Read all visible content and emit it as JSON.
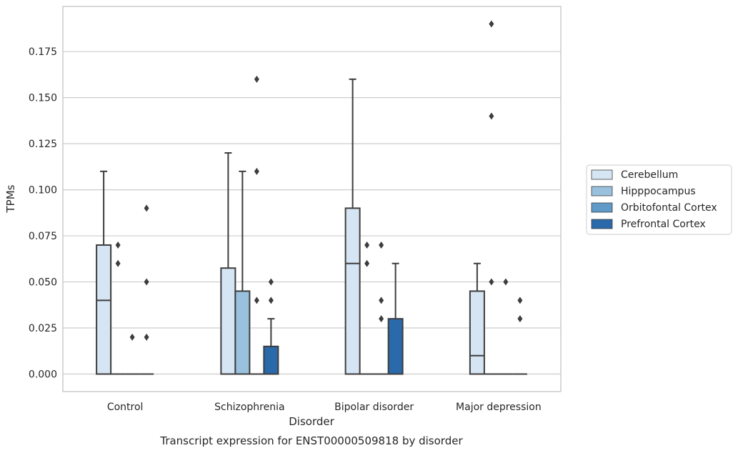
{
  "chart_data": {
    "type": "box",
    "caption": "Transcript expression for ENST00000509818 by disorder",
    "xlabel": "Disorder",
    "ylabel": "TPMs",
    "ylim": [
      -0.0095,
      0.1995
    ],
    "yticks": [
      0.0,
      0.025,
      0.05,
      0.075,
      0.1,
      0.125,
      0.15,
      0.175
    ],
    "ytick_labels": [
      "0.000",
      "0.025",
      "0.050",
      "0.075",
      "0.100",
      "0.125",
      "0.150",
      "0.175"
    ],
    "grid": true,
    "legend_position": "right",
    "categories": [
      "Control",
      "Schizophrenia",
      "Bipolar disorder",
      "Major depression"
    ],
    "series": [
      {
        "name": "Cerebellum",
        "color": "#d6e5f3",
        "boxes": [
          {
            "q1": 0.0,
            "median": 0.04,
            "q3": 0.07,
            "whisker_low": 0.0,
            "whisker_high": 0.11,
            "outliers": []
          },
          {
            "q1": 0.0,
            "median": 0.0,
            "q3": 0.0575,
            "whisker_low": 0.0,
            "whisker_high": 0.12,
            "outliers": []
          },
          {
            "q1": 0.0,
            "median": 0.06,
            "q3": 0.09,
            "whisker_low": 0.0,
            "whisker_high": 0.16,
            "outliers": []
          },
          {
            "q1": 0.0,
            "median": 0.01,
            "q3": 0.045,
            "whisker_low": 0.0,
            "whisker_high": 0.06,
            "outliers": []
          }
        ]
      },
      {
        "name": "Hipppocampus",
        "color": "#99c1de",
        "boxes": [
          {
            "q1": 0.0,
            "median": 0.0,
            "q3": 0.0,
            "whisker_low": 0.0,
            "whisker_high": 0.0,
            "outliers": [
              0.06,
              0.07
            ]
          },
          {
            "q1": 0.0,
            "median": 0.0,
            "q3": 0.045,
            "whisker_low": 0.0,
            "whisker_high": 0.11,
            "outliers": []
          },
          {
            "q1": 0.0,
            "median": 0.0,
            "q3": 0.0,
            "whisker_low": 0.0,
            "whisker_high": 0.0,
            "outliers": [
              0.06,
              0.07
            ]
          },
          {
            "q1": 0.0,
            "median": 0.0,
            "q3": 0.0,
            "whisker_low": 0.0,
            "whisker_high": 0.0,
            "outliers": [
              0.14,
              0.19,
              0.05
            ]
          }
        ]
      },
      {
        "name": "Orbitofontal Cortex",
        "color": "#5f9ac8",
        "boxes": [
          {
            "q1": 0.0,
            "median": 0.0,
            "q3": 0.0,
            "whisker_low": 0.0,
            "whisker_high": 0.0,
            "outliers": [
              0.02
            ]
          },
          {
            "q1": 0.0,
            "median": 0.0,
            "q3": 0.0,
            "whisker_low": 0.0,
            "whisker_high": 0.0,
            "outliers": [
              0.04,
              0.11,
              0.16
            ]
          },
          {
            "q1": 0.0,
            "median": 0.0,
            "q3": 0.0,
            "whisker_low": 0.0,
            "whisker_high": 0.0,
            "outliers": [
              0.03,
              0.04,
              0.07
            ]
          },
          {
            "q1": 0.0,
            "median": 0.0,
            "q3": 0.0,
            "whisker_low": 0.0,
            "whisker_high": 0.0,
            "outliers": [
              0.05
            ]
          }
        ]
      },
      {
        "name": "Prefrontal Cortex",
        "color": "#2a69aa",
        "boxes": [
          {
            "q1": 0.0,
            "median": 0.0,
            "q3": 0.0,
            "whisker_low": 0.0,
            "whisker_high": 0.0,
            "outliers": [
              0.02,
              0.05,
              0.09
            ]
          },
          {
            "q1": 0.0,
            "median": 0.0,
            "q3": 0.015,
            "whisker_low": 0.0,
            "whisker_high": 0.03,
            "outliers": [
              0.04,
              0.05
            ]
          },
          {
            "q1": 0.0,
            "median": 0.0,
            "q3": 0.03,
            "whisker_low": 0.0,
            "whisker_high": 0.06,
            "outliers": []
          },
          {
            "q1": 0.0,
            "median": 0.0,
            "q3": 0.0,
            "whisker_low": 0.0,
            "whisker_high": 0.0,
            "outliers": [
              0.03,
              0.04
            ]
          }
        ]
      }
    ]
  }
}
